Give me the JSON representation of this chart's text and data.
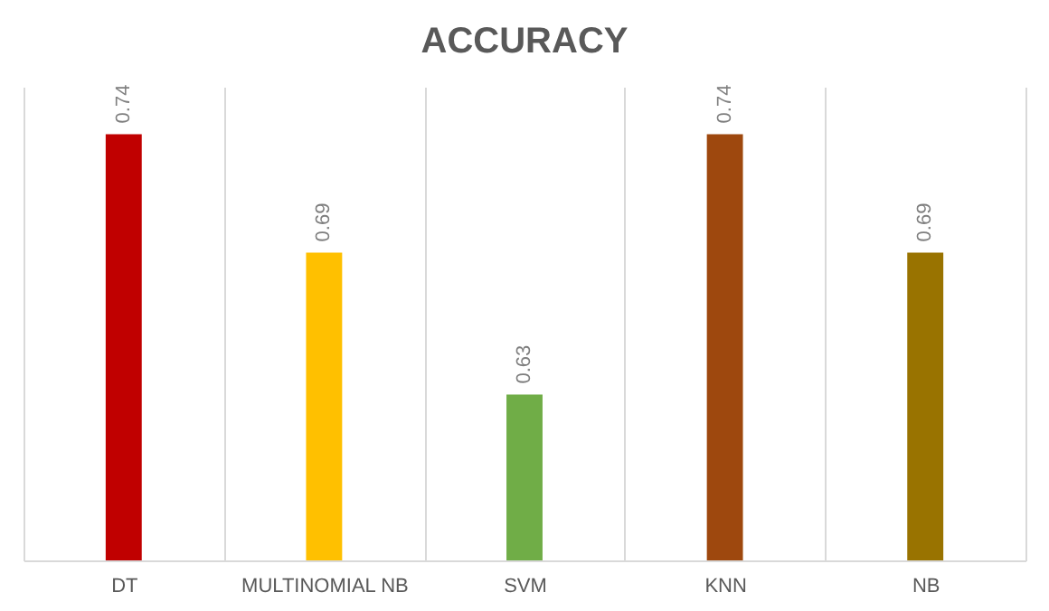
{
  "chart_data": {
    "type": "bar",
    "title": "ACCURACY",
    "categories": [
      "DT",
      "MULTINOMIAL NB",
      "SVM",
      "KNN",
      "NB"
    ],
    "values": [
      0.74,
      0.69,
      0.63,
      0.74,
      0.69
    ],
    "colors": [
      "#c00000",
      "#ffc000",
      "#70ad47",
      "#9e480e",
      "#997300"
    ],
    "ylim": [
      0.56,
      0.76
    ],
    "data_labels": true,
    "grid": "x",
    "legend": false,
    "tick_labels": "x"
  }
}
